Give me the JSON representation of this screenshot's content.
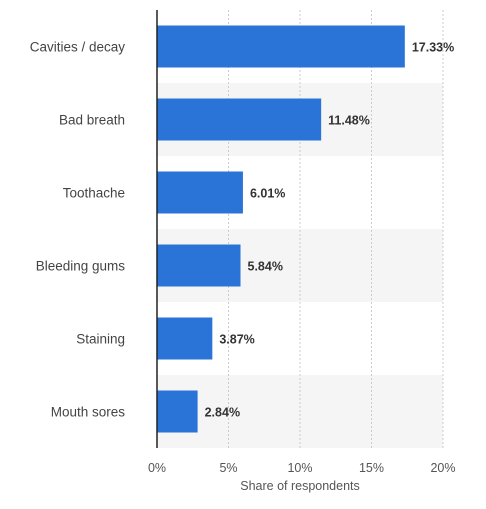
{
  "chart_data": {
    "type": "bar",
    "orientation": "horizontal",
    "categories": [
      "Cavities / decay",
      "Bad breath",
      "Toothache",
      "Bleeding gums",
      "Staining",
      "Mouth sores"
    ],
    "values": [
      17.33,
      11.48,
      6.01,
      5.84,
      3.87,
      2.84
    ],
    "value_labels": [
      "17.33%",
      "11.48%",
      "6.01%",
      "5.84%",
      "3.87%",
      "2.84%"
    ],
    "title": "",
    "xlabel": "Share of respondents",
    "ylabel": "",
    "xlim": [
      0,
      20
    ],
    "xticks": [
      0,
      5,
      10,
      15,
      20
    ],
    "xtick_labels": [
      "0%",
      "5%",
      "10%",
      "15%",
      "20%"
    ],
    "grid": "vertical dashed",
    "legend": "none",
    "colors": {
      "bar": "#2a74d8",
      "band": "#f5f5f5",
      "grid": "#cccccc",
      "axis": "#222222"
    }
  }
}
